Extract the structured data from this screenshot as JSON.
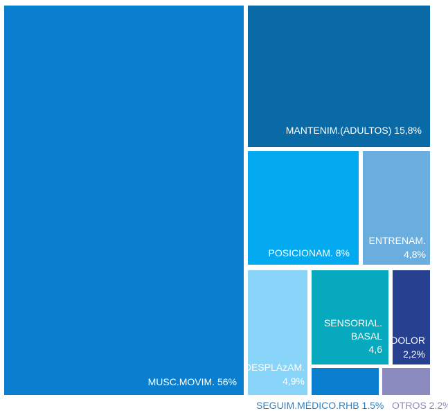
{
  "chart_data": {
    "type": "treemap",
    "cells": [
      {
        "id": "musc",
        "label": [
          "MUSC.MOVIM. 56%"
        ],
        "value": 56,
        "color": "#0a7fcf"
      },
      {
        "id": "manten",
        "label": [
          "MANTENIM.(ADULTOS) 15,8%"
        ],
        "value": 15.8,
        "color": "#0a6aa5"
      },
      {
        "id": "posic",
        "label": [
          "POSICIONAM. 8%"
        ],
        "value": 8,
        "color": "#03aaef"
      },
      {
        "id": "entren",
        "label": [
          "ENTRENAM.",
          "4,8%"
        ],
        "value": 4.8,
        "color": "#6aaedf"
      },
      {
        "id": "despl",
        "label": [
          "DESPLAzAM.",
          "4,9%"
        ],
        "value": 4.9,
        "color": "#88d5f9"
      },
      {
        "id": "sens",
        "label": [
          "SENSORIAL.",
          "BASAL",
          "4,6"
        ],
        "value": 4.6,
        "color": "#06a9be"
      },
      {
        "id": "dolor",
        "label": [
          "DOLOR",
          "2,2%"
        ],
        "value": 2.2,
        "color": "#27408f"
      },
      {
        "id": "seguim",
        "label": [],
        "value": 1.5,
        "color": "#0a7fcf"
      },
      {
        "id": "otros",
        "label": [],
        "value": 2.2,
        "color": "#8c8bbf"
      }
    ],
    "external_labels": [
      {
        "id": "seguim",
        "text": "SEGUIM.MÉDICO.RHB 1.5%",
        "color": "#2b83c6"
      },
      {
        "id": "otros",
        "text": "OTROS 2.2%",
        "color": "#8c8bbf"
      }
    ]
  }
}
